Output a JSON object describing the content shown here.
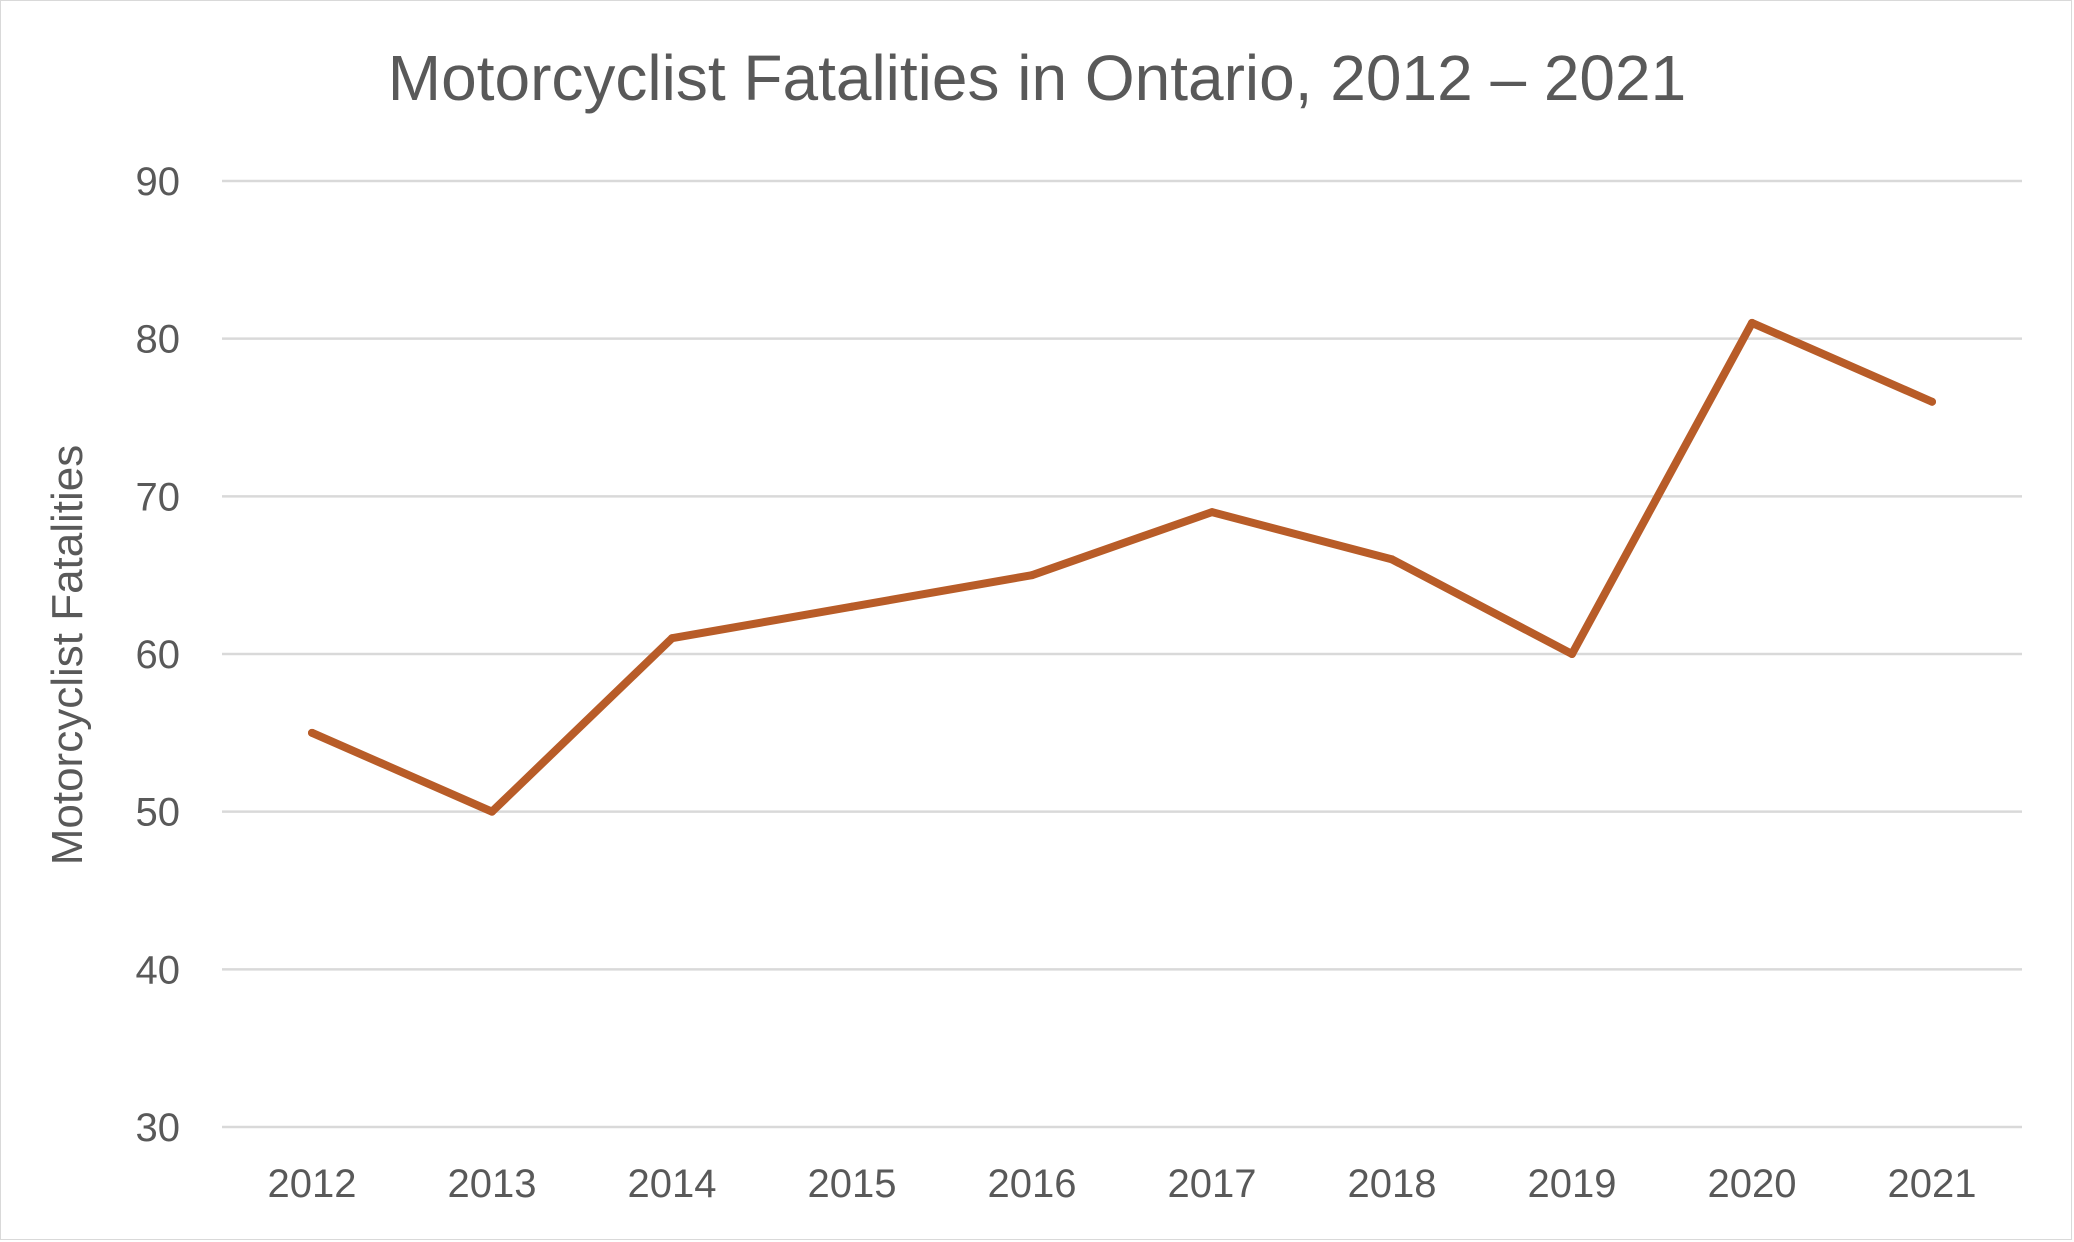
{
  "chart_data": {
    "type": "line",
    "title": "Motorcyclist Fatalities in Ontario, 2012 – 2021",
    "xlabel": "",
    "ylabel": "Motorcyclist Fatalities",
    "categories": [
      "2012",
      "2013",
      "2014",
      "2015",
      "2016",
      "2017",
      "2018",
      "2019",
      "2020",
      "2021"
    ],
    "series": [
      {
        "values": [
          55,
          50,
          61,
          63,
          65,
          69,
          66,
          60,
          81,
          76
        ],
        "color": "#B85C28"
      }
    ],
    "ylim": [
      30,
      90
    ],
    "yticks": [
      "30",
      "40",
      "50",
      "60",
      "70",
      "80",
      "90"
    ],
    "grid": true,
    "legend": "none"
  },
  "colors": {
    "gridline": "#d9d9d9",
    "text": "#595959",
    "border": "#d9d9d9"
  }
}
